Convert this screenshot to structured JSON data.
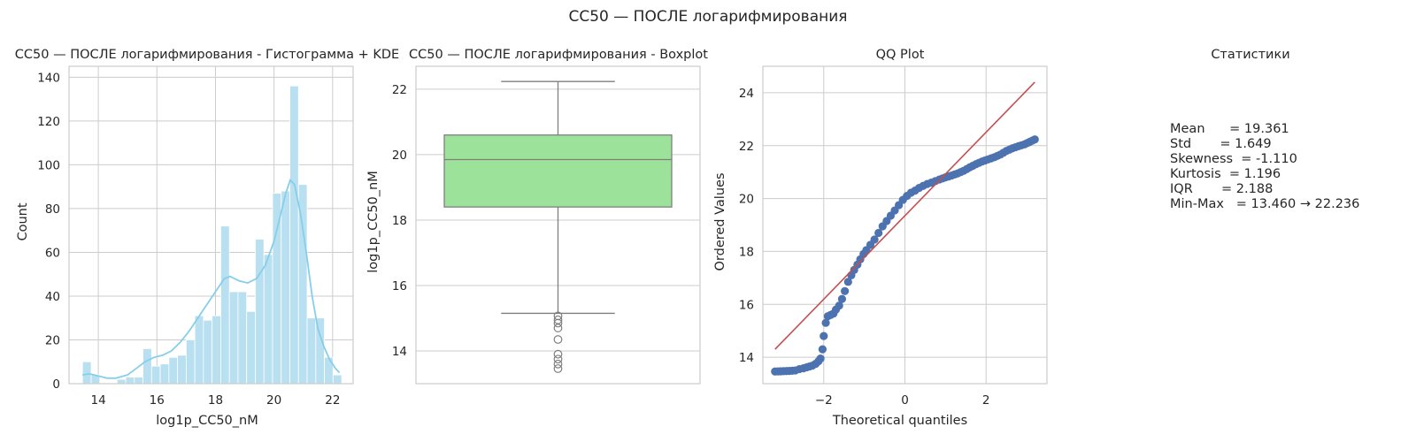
{
  "figure": {
    "suptitle": "CC50 — ПОСЛЕ логарифмирования"
  },
  "colors": {
    "hist_bar": "#b9e0f0",
    "kde_line": "#87ceeb",
    "box_fill": "#9de29a",
    "box_edge": "#7f7f7f",
    "qq_points": "#4c72b0",
    "qq_line": "#c44e52",
    "grid": "#cccccc",
    "spine": "#cccccc"
  },
  "chart_data": [
    {
      "type": "bar",
      "subtype": "histogram_with_kde",
      "title": "CC50 — ПОСЛЕ логарифмирования - Гистограмма + KDE",
      "xlabel": "log1p_CC50_nM",
      "ylabel": "Count",
      "xlim": [
        13.0,
        22.7
      ],
      "ylim": [
        0,
        145
      ],
      "xticks": [
        14,
        16,
        18,
        20,
        22
      ],
      "yticks": [
        0,
        20,
        40,
        60,
        80,
        100,
        120,
        140
      ],
      "grid": true,
      "bin_edges": [
        13.46,
        13.755,
        14.05,
        14.345,
        14.64,
        14.935,
        15.23,
        15.525,
        15.82,
        16.115,
        16.41,
        16.705,
        17.0,
        17.295,
        17.59,
        17.885,
        18.18,
        18.475,
        18.77,
        19.065,
        19.36,
        19.655,
        19.95,
        20.245,
        20.54,
        20.835,
        21.13,
        21.425,
        21.72,
        22.015,
        22.31
      ],
      "counts": [
        10,
        4,
        0,
        0,
        2,
        3,
        3,
        16,
        8,
        9,
        12,
        13,
        20,
        31,
        29,
        31,
        72,
        42,
        42,
        33,
        66,
        59,
        87,
        88,
        136,
        91,
        30,
        30,
        12,
        4
      ],
      "kde": {
        "x": [
          13.46,
          13.7,
          14.0,
          14.3,
          14.6,
          15.0,
          15.3,
          15.6,
          15.9,
          16.2,
          16.5,
          16.8,
          17.1,
          17.4,
          17.7,
          18.0,
          18.3,
          18.5,
          18.8,
          19.1,
          19.4,
          19.7,
          20.0,
          20.2,
          20.4,
          20.55,
          20.7,
          20.9,
          21.1,
          21.3,
          21.5,
          21.7,
          21.9,
          22.1,
          22.236
        ],
        "y": [
          4,
          4.5,
          3.5,
          2.5,
          2.5,
          4,
          7,
          10,
          12,
          13,
          15,
          19,
          24,
          30,
          36,
          42,
          48,
          49,
          47,
          46,
          48,
          54,
          65,
          76,
          87,
          93,
          91,
          78,
          60,
          40,
          25,
          17,
          11,
          7,
          5
        ]
      }
    },
    {
      "type": "box",
      "title": "CC50 — ПОСЛЕ логарифмирования - Boxplot",
      "xlabel": "",
      "ylabel": "log1p_CC50_nM",
      "ylim": [
        13.0,
        22.7
      ],
      "yticks": [
        14,
        16,
        18,
        20,
        22
      ],
      "grid": true,
      "whisker_low": 15.15,
      "q1": 18.4,
      "median": 19.85,
      "q3": 20.6,
      "whisker_high": 22.236,
      "outliers": [
        15.07,
        14.95,
        14.85,
        14.7,
        14.35,
        13.9,
        13.75,
        13.6,
        13.46
      ]
    },
    {
      "type": "scatter",
      "subtype": "qq",
      "title": "QQ Plot",
      "xlabel": "Theoretical quantiles",
      "ylabel": "Ordered Values",
      "xlim": [
        -3.5,
        3.5
      ],
      "ylim": [
        13.0,
        25.0
      ],
      "xticks": [
        -2,
        0,
        2
      ],
      "xtick_labels": [
        "−2",
        "0",
        "2"
      ],
      "yticks": [
        14,
        16,
        18,
        20,
        22,
        24
      ],
      "grid": true,
      "reference_line": {
        "x": [
          -3.2,
          3.2
        ],
        "y": [
          14.3,
          24.4
        ]
      },
      "points": {
        "x": [
          -3.2,
          -2.85,
          -2.7,
          -2.6,
          -2.5,
          -2.42,
          -2.35,
          -2.28,
          -2.2,
          -2.13,
          -2.08,
          -2.03,
          -2.0,
          -1.95,
          -1.9,
          -1.83,
          -1.76,
          -1.7,
          -1.62,
          -1.55,
          -1.48,
          -1.4,
          -1.32,
          -1.25,
          -1.17,
          -1.1,
          -1.02,
          -0.95,
          -0.85,
          -0.75,
          -0.65,
          -0.55,
          -0.45,
          -0.35,
          -0.25,
          -0.15,
          -0.05,
          0.05,
          0.15,
          0.25,
          0.35,
          0.45,
          0.55,
          0.65,
          0.75,
          0.85,
          1.0,
          1.15,
          1.3,
          1.45,
          1.6,
          1.75,
          1.9,
          2.05,
          2.2,
          2.35,
          2.5,
          2.65,
          2.8,
          2.95,
          3.2
        ],
        "y": [
          13.46,
          13.48,
          13.5,
          13.55,
          13.58,
          13.62,
          13.65,
          13.68,
          13.75,
          13.85,
          13.95,
          14.3,
          14.8,
          15.3,
          15.55,
          15.6,
          15.65,
          15.8,
          15.95,
          16.2,
          16.5,
          16.85,
          17.1,
          17.3,
          17.5,
          17.7,
          17.9,
          18.05,
          18.25,
          18.45,
          18.7,
          18.95,
          19.15,
          19.35,
          19.55,
          19.75,
          19.95,
          20.1,
          20.22,
          20.3,
          20.4,
          20.48,
          20.55,
          20.6,
          20.66,
          20.72,
          20.8,
          20.87,
          20.95,
          21.05,
          21.18,
          21.3,
          21.4,
          21.48,
          21.56,
          21.66,
          21.8,
          21.9,
          21.98,
          22.05,
          22.236
        ]
      }
    }
  ],
  "stats_panel": {
    "title": "Статистики",
    "lines": [
      "Mean      = 19.361",
      "Std       = 1.649",
      "Skewness  = -1.110",
      "Kurtosis  = 1.196",
      "IQR       = 2.188",
      "Min-Max   = 13.460 → 22.236"
    ]
  }
}
